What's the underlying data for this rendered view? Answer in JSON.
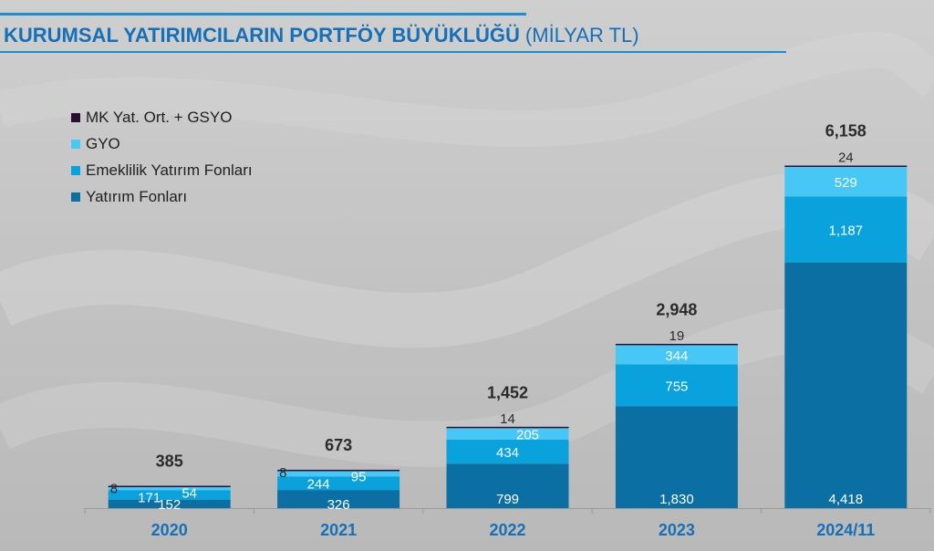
{
  "header": {
    "title": "KURUMSAL YATIRIMCILARIN PORTFÖY BÜYÜKLÜĞÜ",
    "subtitle": "(MİLYAR TL)"
  },
  "colors": {
    "title": "#1570b8",
    "yatirim_fonlari": "#0b6fa4",
    "emeklilik": "#0aa2dd",
    "gyo": "#46c7f5",
    "mk_gsyo": "#2a0f33"
  },
  "chart_data": {
    "type": "bar",
    "stacked": true,
    "categories": [
      "2020",
      "2021",
      "2022",
      "2023",
      "2024/11"
    ],
    "series": [
      {
        "name": "Yatırım Fonları",
        "values": [
          152,
          326,
          799,
          1830,
          4418
        ]
      },
      {
        "name": "Emeklilik Yatırım Fonları",
        "values": [
          171,
          244,
          434,
          755,
          1187
        ]
      },
      {
        "name": "GYO",
        "values": [
          54,
          95,
          205,
          344,
          529
        ]
      },
      {
        "name": "MK Yat. Ort. + GSYO",
        "values": [
          8,
          8,
          14,
          19,
          24
        ]
      }
    ],
    "totals": [
      385,
      673,
      1452,
      2948,
      6158
    ],
    "value_labels": {
      "Yatırım Fonları": [
        "152",
        "326",
        "799",
        "1,830",
        "4,418"
      ],
      "Emeklilik Yatırım Fonları": [
        "171",
        "244",
        "434",
        "755",
        "1,187"
      ],
      "GYO": [
        "54",
        "95",
        "205",
        "344",
        "529"
      ],
      "MK Yat. Ort. + GSYO": [
        "8",
        "8",
        "14",
        "19",
        "24"
      ]
    },
    "total_labels": [
      "385",
      "673",
      "1,452",
      "2,948",
      "6,158"
    ],
    "ylim": [
      0,
      6800
    ],
    "legend": [
      "MK Yat. Ort. + GSYO",
      "GYO",
      "Emeklilik Yatırım Fonları",
      "Yatırım Fonları"
    ],
    "legend_position": "top-left",
    "grid": false
  }
}
